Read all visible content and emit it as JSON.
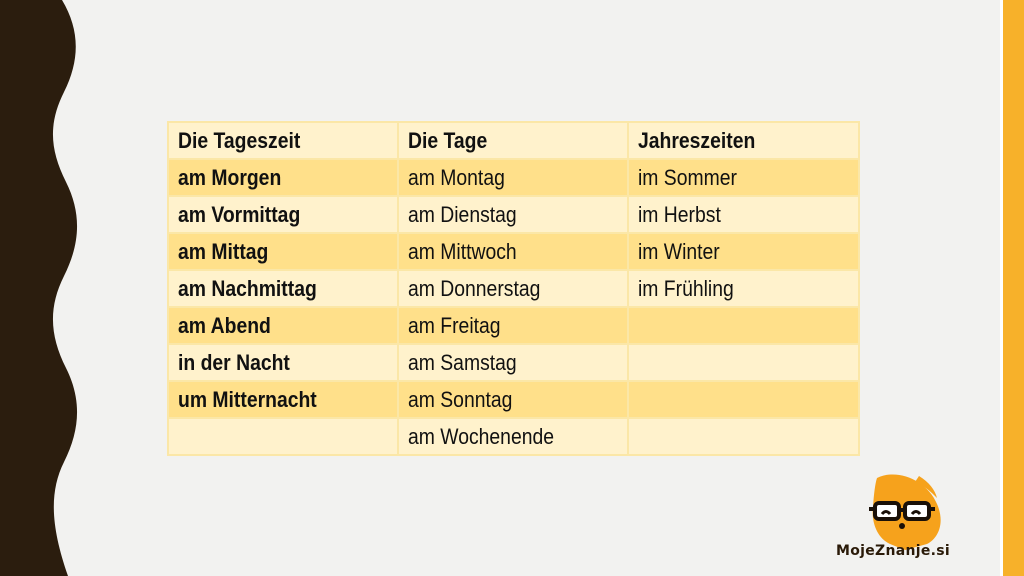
{
  "table": {
    "headers": [
      "Die Tageszeit",
      "Die Tage",
      "Jahreszeiten"
    ],
    "rows": [
      [
        "am Morgen",
        "am Montag",
        "im Sommer"
      ],
      [
        "am Vormittag",
        "am Dienstag",
        "im Herbst"
      ],
      [
        "am Mittag",
        "am Mittwoch",
        "im Winter"
      ],
      [
        "am Nachmittag",
        "am Donnerstag",
        "im Frühling"
      ],
      [
        "am Abend",
        "am Freitag",
        ""
      ],
      [
        "in der Nacht",
        "am Samstag",
        ""
      ],
      [
        "um Mitternacht",
        "am Sonntag",
        ""
      ],
      [
        "",
        "am Wochenende",
        ""
      ]
    ]
  },
  "logo": {
    "text": "MojeZnanje.si",
    "icon": "glasses-mascot-icon"
  },
  "colors": {
    "background": "#f2f2f0",
    "left_band": "#2b1d0e",
    "right_band": "#f7b12a",
    "row_light": "#fff2cc",
    "row_dark": "#ffe08a",
    "border": "#fbe7a7"
  }
}
